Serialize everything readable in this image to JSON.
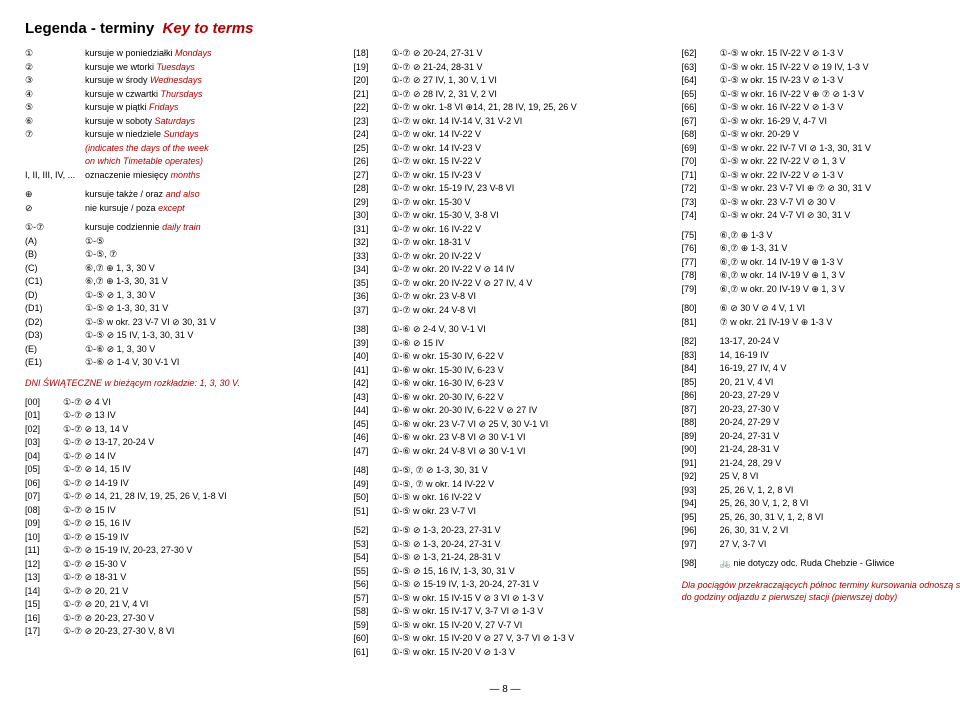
{
  "title": "Legenda - terminy",
  "title_it": "Key to terms",
  "colors": {
    "accent": "#b00000",
    "text": "#000000",
    "background": "#ffffff"
  },
  "page_number": "— 8 —",
  "col1": {
    "days": [
      {
        "k": "①",
        "pl": "kursuje w poniedziałki",
        "en": "Mondays"
      },
      {
        "k": "②",
        "pl": "kursuje we wtorki",
        "en": "Tuesdays"
      },
      {
        "k": "③",
        "pl": "kursuje w środy",
        "en": "Wednesdays"
      },
      {
        "k": "④",
        "pl": "kursuje w czwartki",
        "en": "Thursdays"
      },
      {
        "k": "⑤",
        "pl": "kursuje w piątki",
        "en": "Fridays"
      },
      {
        "k": "⑥",
        "pl": "kursuje w soboty",
        "en": "Saturdays"
      },
      {
        "k": "⑦",
        "pl": "kursuje w niedziele",
        "en": "Sundays"
      }
    ],
    "indicates1": "(indicates the days of the week",
    "indicates2": "on which Timetable operates)",
    "months_k": "I, II, III, IV, ...",
    "months_pl": "oznaczenie miesięcy",
    "months_en": "months",
    "also_k": "⊕",
    "also_pl": "kursuje także / oraz",
    "also_en": "and also",
    "except_k": "⊘",
    "except_pl": "nie kursuje / poza",
    "except_en": "except",
    "daily_k": "①-⑦",
    "daily_pl": "kursuje codziennie",
    "daily_en": "daily train",
    "letters": [
      {
        "k": "(A)",
        "v": "①-⑤"
      },
      {
        "k": "(B)",
        "v": "①-⑤, ⑦"
      },
      {
        "k": "(C)",
        "v": "⑥,⑦ ⊕ 1, 3, 30 V"
      },
      {
        "k": "(C1)",
        "v": "⑥,⑦ ⊕ 1-3, 30, 31 V"
      },
      {
        "k": "(D)",
        "v": "①-⑤ ⊘ 1, 3, 30 V"
      },
      {
        "k": "(D1)",
        "v": "①-⑤ ⊘ 1-3, 30, 31 V"
      },
      {
        "k": "(D2)",
        "v": "①-⑤ w okr. 23 V-7 VI ⊘ 30, 31 V"
      },
      {
        "k": "(D3)",
        "v": "①-⑤ ⊘ 15 IV, 1-3, 30, 31 V"
      },
      {
        "k": "(E)",
        "v": "①-⑥ ⊘ 1, 3, 30 V"
      },
      {
        "k": "(E1)",
        "v": "①-⑥ ⊘ 1-4 V, 30 V-1 VI"
      }
    ],
    "dniswi": "DNI ŚWIĄTECZNE w bieżącym rozkładzie: 1, 3, 30 V.",
    "codes": [
      {
        "k": "[00]",
        "v": "①-⑦ ⊘ 4 VI"
      },
      {
        "k": "[01]",
        "v": "①-⑦ ⊘ 13 IV"
      },
      {
        "k": "[02]",
        "v": "①-⑦ ⊘ 13, 14 V"
      },
      {
        "k": "[03]",
        "v": "①-⑦ ⊘ 13-17, 20-24 V"
      },
      {
        "k": "[04]",
        "v": "①-⑦ ⊘ 14 IV"
      },
      {
        "k": "[05]",
        "v": "①-⑦ ⊘ 14, 15 IV"
      },
      {
        "k": "[06]",
        "v": "①-⑦ ⊘ 14-19 IV"
      },
      {
        "k": "[07]",
        "v": "①-⑦ ⊘ 14, 21, 28 IV, 19, 25, 26 V, 1-8 VI"
      },
      {
        "k": "[08]",
        "v": "①-⑦ ⊘ 15 IV"
      },
      {
        "k": "[09]",
        "v": "①-⑦ ⊘ 15, 16 IV"
      },
      {
        "k": "[10]",
        "v": "①-⑦ ⊘ 15-19 IV"
      },
      {
        "k": "[11]",
        "v": "①-⑦ ⊘ 15-19 IV, 20-23, 27-30 V"
      },
      {
        "k": "[12]",
        "v": "①-⑦ ⊘ 15-30 V"
      },
      {
        "k": "[13]",
        "v": "①-⑦ ⊘ 18-31 V"
      },
      {
        "k": "[14]",
        "v": "①-⑦ ⊘ 20, 21 V"
      },
      {
        "k": "[15]",
        "v": "①-⑦ ⊘ 20, 21 V, 4 VI"
      },
      {
        "k": "[16]",
        "v": "①-⑦ ⊘ 20-23, 27-30 V"
      },
      {
        "k": "[17]",
        "v": "①-⑦ ⊘ 20-23, 27-30 V, 8 VI"
      }
    ]
  },
  "col2": [
    {
      "k": "[18]",
      "v": "①-⑦ ⊘ 20-24, 27-31 V"
    },
    {
      "k": "[19]",
      "v": "①-⑦ ⊘ 21-24, 28-31 V"
    },
    {
      "k": "[20]",
      "v": "①-⑦ ⊘ 27 IV, 1, 30 V, 1 VI"
    },
    {
      "k": "[21]",
      "v": "①-⑦ ⊘ 28 IV, 2, 31 V, 2 VI"
    },
    {
      "k": "[22]",
      "v": "①-⑦ w okr. 1-8 VI ⊕14, 21, 28 IV, 19, 25, 26 V"
    },
    {
      "k": "[23]",
      "v": "①-⑦ w okr. 14 IV-14 V, 31 V-2 VI"
    },
    {
      "k": "[24]",
      "v": "①-⑦ w okr. 14 IV-22 V"
    },
    {
      "k": "[25]",
      "v": "①-⑦ w okr. 14 IV-23 V"
    },
    {
      "k": "[26]",
      "v": "①-⑦ w okr. 15 IV-22 V"
    },
    {
      "k": "[27]",
      "v": "①-⑦ w okr. 15 IV-23 V"
    },
    {
      "k": "[28]",
      "v": "①-⑦ w okr. 15-19 IV, 23 V-8 VI"
    },
    {
      "k": "[29]",
      "v": "①-⑦ w okr. 15-30 V"
    },
    {
      "k": "[30]",
      "v": "①-⑦ w okr. 15-30 V, 3-8 VI"
    },
    {
      "k": "[31]",
      "v": "①-⑦ w okr. 16 IV-22 V"
    },
    {
      "k": "[32]",
      "v": "①-⑦ w okr. 18-31 V"
    },
    {
      "k": "[33]",
      "v": "①-⑦ w okr. 20 IV-22 V"
    },
    {
      "k": "[34]",
      "v": "①-⑦ w okr. 20 IV-22 V ⊘ 14 IV"
    },
    {
      "k": "[35]",
      "v": "①-⑦ w okr. 20 IV-22 V ⊘ 27 IV, 4 V"
    },
    {
      "k": "[36]",
      "v": "①-⑦ w okr. 23 V-8 VI"
    },
    {
      "k": "[37]",
      "v": "①-⑦ w okr. 24 V-8 VI"
    },
    {
      "k": "",
      "v": ""
    },
    {
      "k": "[38]",
      "v": "①-⑥ ⊘ 2-4 V, 30 V-1 VI"
    },
    {
      "k": "[39]",
      "v": "①-⑥ ⊘ 15 IV"
    },
    {
      "k": "[40]",
      "v": "①-⑥ w okr. 15-30 IV, 6-22 V"
    },
    {
      "k": "[41]",
      "v": "①-⑥ w okr. 15-30 IV, 6-23 V"
    },
    {
      "k": "[42]",
      "v": "①-⑥ w okr. 16-30 IV, 6-23 V"
    },
    {
      "k": "[43]",
      "v": "①-⑥ w okr. 20-30 IV, 6-22 V"
    },
    {
      "k": "[44]",
      "v": "①-⑥ w okr. 20-30 IV, 6-22 V ⊘ 27 IV"
    },
    {
      "k": "[45]",
      "v": "①-⑥ w okr. 23 V-7 VI ⊘ 25 V, 30 V-1 VI"
    },
    {
      "k": "[46]",
      "v": "①-⑥ w okr. 23 V-8 VI ⊘ 30 V-1 VI"
    },
    {
      "k": "[47]",
      "v": "①-⑥ w okr. 24 V-8 VI ⊘ 30 V-1 VI"
    },
    {
      "k": "",
      "v": ""
    },
    {
      "k": "[48]",
      "v": "①-⑤, ⑦ ⊘ 1-3, 30, 31 V"
    },
    {
      "k": "[49]",
      "v": "①-⑤, ⑦ w okr. 14 IV-22 V"
    },
    {
      "k": "[50]",
      "v": "①-⑤ w okr. 16 IV-22 V"
    },
    {
      "k": "[51]",
      "v": "①-⑤ w okr. 23 V-7 VI"
    },
    {
      "k": "",
      "v": ""
    },
    {
      "k": "[52]",
      "v": "①-⑤ ⊘ 1-3, 20-23, 27-31 V"
    },
    {
      "k": "[53]",
      "v": "①-⑤ ⊘ 1-3, 20-24, 27-31 V"
    },
    {
      "k": "[54]",
      "v": "①-⑤ ⊘ 1-3, 21-24, 28-31 V"
    },
    {
      "k": "[55]",
      "v": "①-⑤ ⊘ 15, 16 IV, 1-3, 30, 31 V"
    },
    {
      "k": "[56]",
      "v": "①-⑤ ⊘ 15-19 IV, 1-3, 20-24, 27-31 V"
    },
    {
      "k": "[57]",
      "v": "①-⑤ w okr. 15 IV-15 V ⊘ 3 VI ⊘ 1-3 V"
    },
    {
      "k": "[58]",
      "v": "①-⑤ w okr. 15 IV-17 V, 3-7 VI ⊘ 1-3 V"
    },
    {
      "k": "[59]",
      "v": "①-⑤ w okr. 15 IV-20 V, 27 V-7 VI"
    },
    {
      "k": "[60]",
      "v": "①-⑤ w okr. 15 IV-20 V ⊘ 27 V, 3-7 VI ⊘ 1-3 V"
    },
    {
      "k": "[61]",
      "v": "①-⑤ w okr. 15 IV-20 V ⊘ 1-3 V"
    }
  ],
  "col3": {
    "codes": [
      {
        "k": "[62]",
        "v": "①-⑤ w okr. 15 IV-22 V ⊘ 1-3 V"
      },
      {
        "k": "[63]",
        "v": "①-⑤ w okr. 15 IV-22 V ⊘ 19 IV, 1-3 V"
      },
      {
        "k": "[64]",
        "v": "①-⑤ w okr. 15 IV-23 V ⊘ 1-3 V"
      },
      {
        "k": "[65]",
        "v": "①-⑤ w okr. 16 IV-22 V ⊕ ⑦ ⊘ 1-3 V"
      },
      {
        "k": "[66]",
        "v": "①-⑤ w okr. 16 IV-22 V ⊘ 1-3 V"
      },
      {
        "k": "[67]",
        "v": "①-⑤ w okr. 16-29 V, 4-7 VI"
      },
      {
        "k": "[68]",
        "v": "①-⑤ w okr. 20-29 V"
      },
      {
        "k": "[69]",
        "v": "①-⑤ w okr. 22 IV-7 VI ⊘ 1-3, 30, 31 V"
      },
      {
        "k": "[70]",
        "v": "①-⑤ w okr. 22 IV-22 V ⊘ 1, 3 V"
      },
      {
        "k": "[71]",
        "v": "①-⑤ w okr. 22 IV-22 V ⊘ 1-3 V"
      },
      {
        "k": "[72]",
        "v": "①-⑤ w okr. 23 V-7 VI ⊕ ⑦ ⊘ 30, 31 V"
      },
      {
        "k": "[73]",
        "v": "①-⑤ w okr. 23 V-7 VI ⊘ 30 V"
      },
      {
        "k": "[74]",
        "v": "①-⑤ w okr. 24 V-7 VI ⊘ 30, 31 V"
      },
      {
        "k": "",
        "v": ""
      },
      {
        "k": "[75]",
        "v": "⑥,⑦ ⊕ 1-3 V"
      },
      {
        "k": "[76]",
        "v": "⑥,⑦ ⊕ 1-3, 31 V"
      },
      {
        "k": "[77]",
        "v": "⑥,⑦ w okr. 14 IV-19 V ⊕ 1-3 V"
      },
      {
        "k": "[78]",
        "v": "⑥,⑦ w okr. 14 IV-19 V ⊕ 1, 3 V"
      },
      {
        "k": "[79]",
        "v": "⑥,⑦ w okr. 20 IV-19 V ⊕ 1, 3 V"
      },
      {
        "k": "",
        "v": ""
      },
      {
        "k": "[80]",
        "v": "⑥ ⊘ 30 V ⊘ 4 V, 1 VI"
      },
      {
        "k": "[81]",
        "v": "⑦ w okr. 21 IV-19 V ⊕ 1-3 V"
      },
      {
        "k": "",
        "v": ""
      },
      {
        "k": "[82]",
        "v": "13-17, 20-24 V"
      },
      {
        "k": "[83]",
        "v": "14, 16-19 IV"
      },
      {
        "k": "[84]",
        "v": "16-19, 27 IV, 4 V"
      },
      {
        "k": "[85]",
        "v": "20, 21 V, 4 VI"
      },
      {
        "k": "[86]",
        "v": "20-23, 27-29 V"
      },
      {
        "k": "[87]",
        "v": "20-23, 27-30 V"
      },
      {
        "k": "[88]",
        "v": "20-24, 27-29 V"
      },
      {
        "k": "[89]",
        "v": "20-24, 27-31 V"
      },
      {
        "k": "[90]",
        "v": "21-24, 28-31 V"
      },
      {
        "k": "[91]",
        "v": "21-24, 28, 29 V"
      },
      {
        "k": "[92]",
        "v": "25 V, 8 VI"
      },
      {
        "k": "[93]",
        "v": "25, 26 V, 1, 2, 8 VI"
      },
      {
        "k": "[94]",
        "v": "25, 26, 30 V, 1, 2, 8 VI"
      },
      {
        "k": "[95]",
        "v": "25, 26, 30, 31 V, 1, 2, 8 VI"
      },
      {
        "k": "[96]",
        "v": "26, 30, 31 V, 2 VI"
      },
      {
        "k": "[97]",
        "v": "27 V, 3-7 VI"
      },
      {
        "k": "",
        "v": ""
      },
      {
        "k": "[98]",
        "v": "🚲   nie dotyczy odc. Ruda Chebzie - Gliwice"
      }
    ],
    "note1": "Dla pociągów przekraczających północ terminy kursowania odnoszą się",
    "note2": "do godziny odjazdu z pierwszej stacji (pierwszej doby)"
  }
}
